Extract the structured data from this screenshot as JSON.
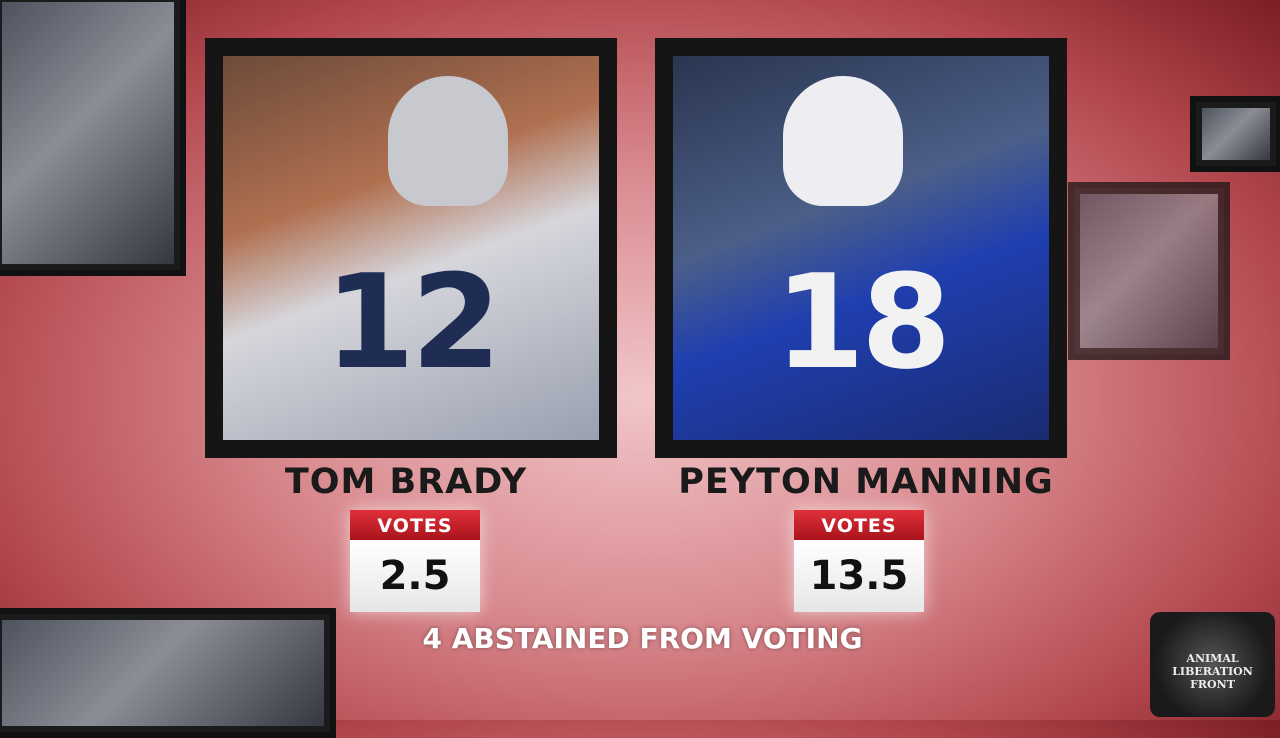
{
  "candidates": [
    {
      "name": "TOM BRADY",
      "jersey": "12",
      "votes_label": "VOTES",
      "votes": 2.5
    },
    {
      "name": "PEYTON MANNING",
      "jersey": "18",
      "votes_label": "VOTES",
      "votes": 13.5
    }
  ],
  "footer": "4 ABSTAINED FROM VOTING",
  "watermark": "ANIMAL LIBERATION FRONT"
}
